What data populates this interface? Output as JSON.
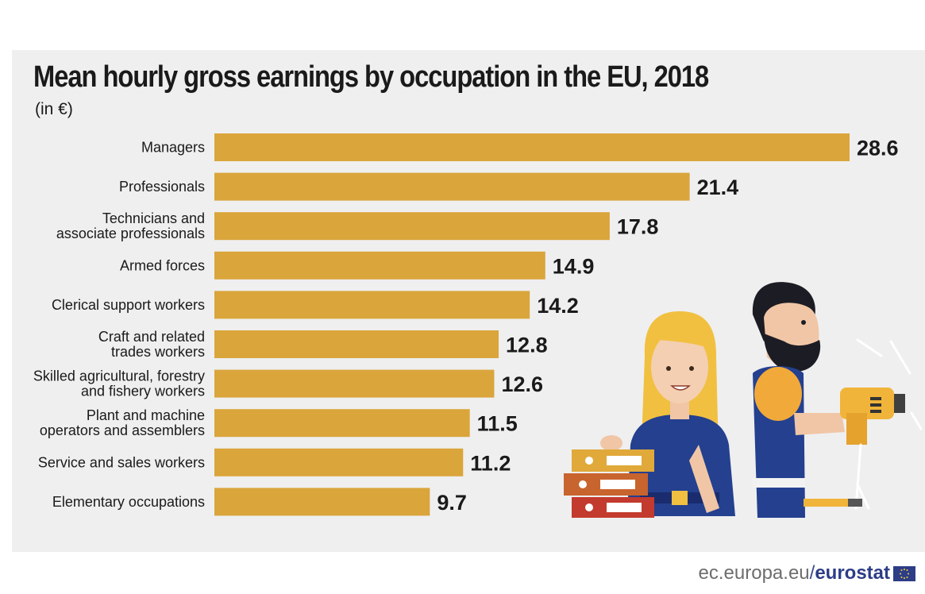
{
  "title": "Mean hourly gross earnings by occupation in the EU, 2018",
  "subtitle": "(in €)",
  "footer": {
    "domain": "ec.europa.eu",
    "slash": "/",
    "brand": "eurostat",
    "flag_icon": "eu-flag-icon"
  },
  "colors": {
    "bar": "#daa53b",
    "panel": "#efefef",
    "text": "#1a1a1a",
    "brand": "#2d3d86"
  },
  "chart_data": {
    "type": "bar",
    "orientation": "horizontal",
    "title": "Mean hourly gross earnings by occupation in the EU, 2018",
    "subtitle": "(in €)",
    "categories": [
      [
        "Managers"
      ],
      [
        "Professionals"
      ],
      [
        "Technicians and",
        "associate professionals"
      ],
      [
        "Armed forces"
      ],
      [
        "Clerical support workers"
      ],
      [
        "Craft and related",
        "trades workers"
      ],
      [
        "Skilled agricultural, forestry",
        "and fishery workers"
      ],
      [
        "Plant and machine",
        "operators and assemblers"
      ],
      [
        "Service and sales workers"
      ],
      [
        "Elementary occupations"
      ]
    ],
    "values": [
      28.6,
      21.4,
      17.8,
      14.9,
      14.2,
      12.8,
      12.6,
      11.5,
      11.2,
      9.7
    ],
    "value_labels": [
      "28.6",
      "21.4",
      "17.8",
      "14.9",
      "14.2",
      "12.8",
      "12.6",
      "11.5",
      "11.2",
      "9.7"
    ],
    "xlim": [
      0,
      28.6
    ],
    "grid": false,
    "legend": "none"
  },
  "illustration": {
    "icons": [
      "woman-with-binders-icon",
      "bearded-worker-with-drill-icon"
    ]
  }
}
